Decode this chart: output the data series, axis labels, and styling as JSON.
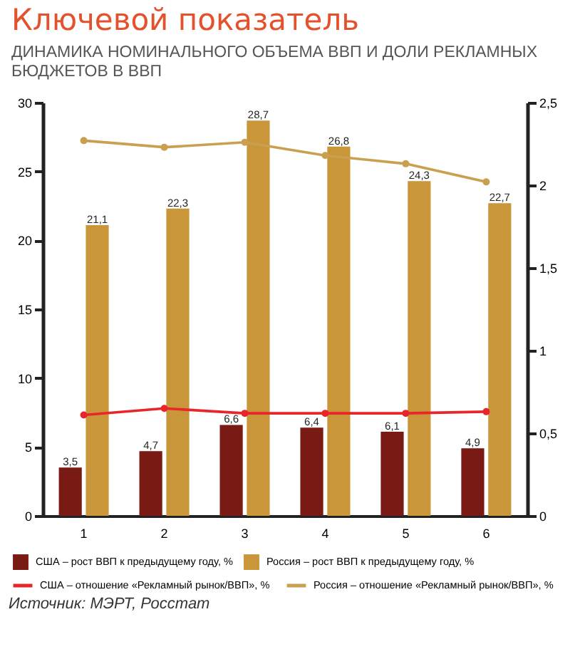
{
  "chart_data": {
    "type": "bar",
    "title": "Ключевой показатель",
    "subtitle": "ДИНАМИКА НОМИНАЛЬНОГО ОБЪЕМА ВВП И ДОЛИ РЕКЛАМНЫХ БЮДЖЕТОВ В ВВП",
    "categories": [
      "1",
      "2",
      "3",
      "4",
      "5",
      "6"
    ],
    "series": [
      {
        "name": "США – рост ВВП к предыдущему году, %",
        "color": "#7a1a14",
        "values": [
          3.5,
          4.7,
          6.6,
          6.4,
          6.1,
          4.9
        ],
        "value_labels": [
          "3,5",
          "4,7",
          "6,6",
          "6,4",
          "6,1",
          "4,9"
        ]
      },
      {
        "name": "Россия – рост ВВП к предыдущему году, %",
        "color": "#c9963a",
        "values": [
          21.1,
          22.3,
          28.7,
          26.8,
          24.3,
          22.7
        ],
        "value_labels": [
          "21,1",
          "22,3",
          "28,7",
          "26,8",
          "24,3",
          "22,7"
        ]
      },
      {
        "name": "США – отношение «Рекламный рынок/ВВП», %",
        "type": "line",
        "axis": "y2",
        "color": "#e8262a",
        "values": [
          0.61,
          0.65,
          0.62,
          0.62,
          0.62,
          0.63
        ]
      },
      {
        "name": "Россия – отношение «Рекламный рынок/ВВП», %",
        "type": "line",
        "axis": "y2",
        "color": "#c9a050",
        "values": [
          2.27,
          2.23,
          2.26,
          2.18,
          2.13,
          2.02
        ]
      }
    ],
    "ylim": [
      0,
      30
    ],
    "yticks": [
      0,
      5,
      10,
      15,
      20,
      25,
      30
    ],
    "y2lim": [
      0,
      2.5
    ],
    "y2ticks": [
      0,
      {
        "value": 0.5,
        "label": "0,5"
      },
      1,
      {
        "value": 1.5,
        "label": "1,5"
      },
      2,
      {
        "value": 2.5,
        "label": "2,5"
      }
    ],
    "marker": "circle",
    "legend": "bottom",
    "annotations": [
      "Источник: МЭРТ, Росстат"
    ]
  }
}
